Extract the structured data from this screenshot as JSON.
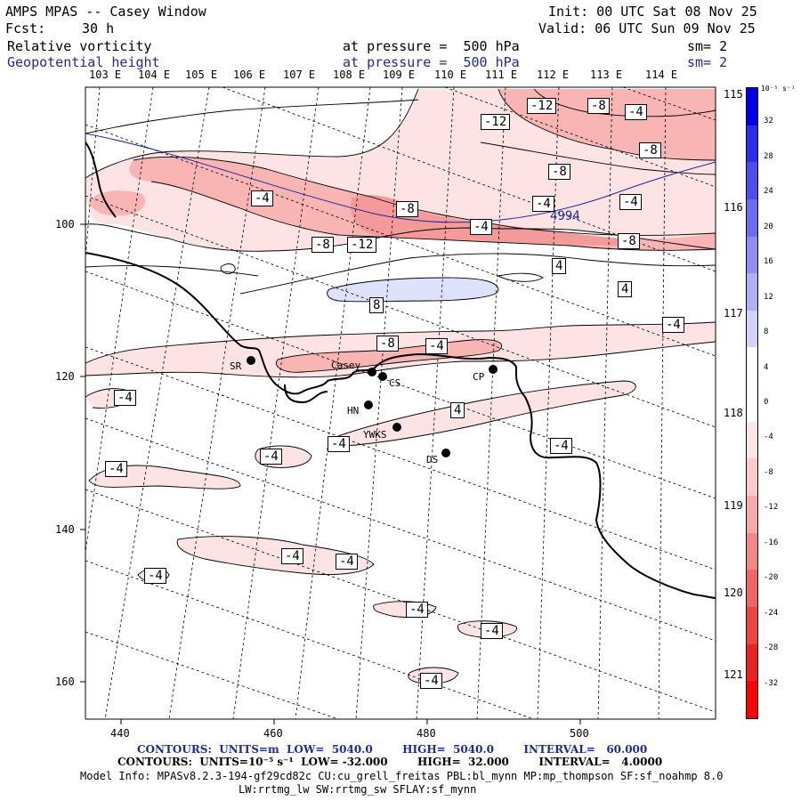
{
  "header": {
    "title": "AMPS MPAS -- Casey Window",
    "init": "Init: 00 UTC Sat 08 Nov 25",
    "fcst_label": "Fcst:",
    "fcst_value": "30 h",
    "valid": "Valid: 06 UTC Sun 09 Nov 25",
    "field1_name": "Relative vorticity",
    "field1_pressure": "at pressure =  500 hPa",
    "field1_smooth": "sm= 2",
    "field2_name": "Geopotential height",
    "field2_pressure": "at pressure =  500 hPa",
    "field2_smooth": "sm= 2"
  },
  "map": {
    "top_lon_labels": [
      "103 E",
      "104 E",
      "105 E",
      "106 E",
      "107 E",
      "108 E",
      "109 E",
      "110 E",
      "111 E",
      "112 E",
      "113 E",
      "114 E"
    ],
    "right_lon_labels": [
      "115 E",
      "116 E",
      "117 E",
      "118 E",
      "119 E",
      "120 E",
      "121 E"
    ],
    "y_tick_labels": [
      "100",
      "120",
      "140",
      "160"
    ],
    "x_tick_labels": [
      "440",
      "460",
      "480",
      "500"
    ],
    "stations": [
      {
        "id": "SR",
        "label": "SR"
      },
      {
        "id": "Casey",
        "label": "Casey"
      },
      {
        "id": "CS",
        "label": "CS"
      },
      {
        "id": "CP",
        "label": "CP"
      },
      {
        "id": "HN",
        "label": "HN"
      },
      {
        "id": "YWKS",
        "label": "YWKS"
      },
      {
        "id": "DS",
        "label": "DS"
      }
    ],
    "height_label": "4994",
    "contour_labels": [
      "-12",
      "-8",
      "-4",
      "-12",
      "-8",
      "-8",
      "-4",
      "-4",
      "-8",
      "-12",
      "-8",
      "-4",
      "-8",
      "4",
      "4",
      "8",
      "-4",
      "-8",
      "-4",
      "-4",
      "4",
      "-4",
      "-4",
      "-4",
      "-4",
      "-4",
      "-4",
      "-4",
      "-4",
      "-4",
      "-4",
      "-4"
    ]
  },
  "colorbar": {
    "units": "10⁻⁵ s⁻¹",
    "labels": [
      "32",
      "28",
      "24",
      "20",
      "16",
      "12",
      "8",
      "4",
      "0",
      "-4",
      "-8",
      "-12",
      "-16",
      "-20",
      "-24",
      "-28",
      "-32"
    ],
    "colors": [
      "#0000e8",
      "#2c2ced",
      "#4c4cf0",
      "#6c6cf3",
      "#8e8ef6",
      "#b0b0f9",
      "#d2d2fc",
      "#ffffff",
      "#ffffff",
      "#fde6e6",
      "#fccaca",
      "#f8aaaa",
      "#f48888",
      "#f06666",
      "#ed4444",
      "#ea2222",
      "#ff0000"
    ]
  },
  "footer": {
    "line1": "CONTOURS:  UNITS=m  LOW=  5040.0        HIGH=  5040.0        INTERVAL=   60.000",
    "line2": "CONTOURS:  UNITS=10⁻⁵ s⁻¹  LOW= -32.000        HIGH=  32.000        INTERVAL=   4.0000",
    "line3": "Model Info: MPASv8.2.3-194-gf29cd82c CU:cu_grell_freitas PBL:bl_mynn MP:mp_thompson SF:sf_noahmp 8.0",
    "line4": "LW:rrtmg_lw SW:rrtmg_sw SFLAY:sf_mynn"
  }
}
